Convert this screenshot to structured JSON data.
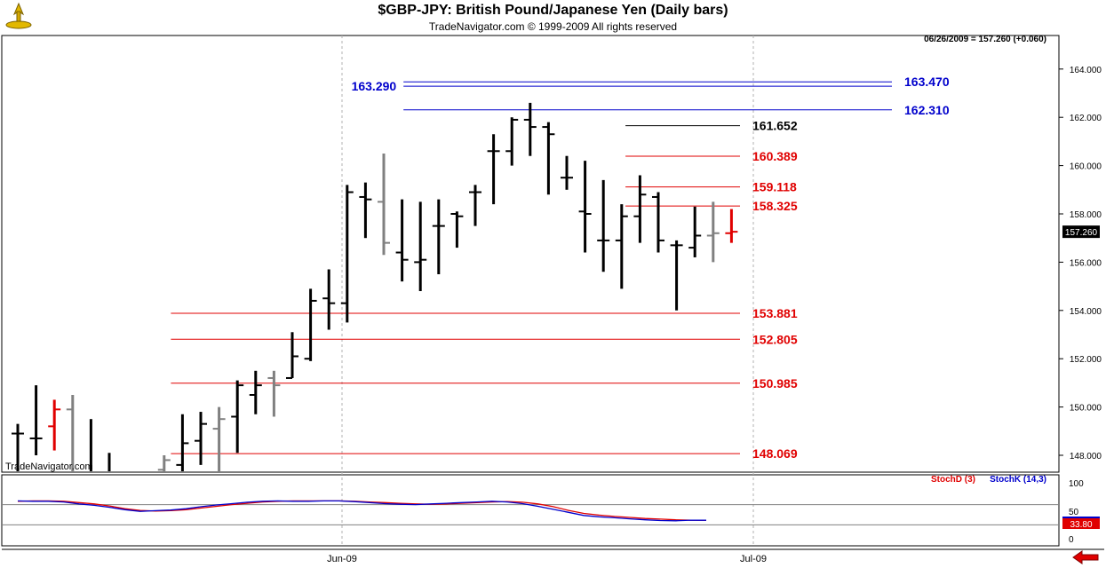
{
  "header": {
    "title": "$GBP-JPY:  British Pound/Japanese Yen  (Daily bars)",
    "subtitle": "TradeNavigator.com © 1999-2009 All rights reserved",
    "info": "06/26/2009 = 157.260 (+0.060)",
    "watermark": "TradeNavigator.com"
  },
  "chart_data": {
    "type": "bar",
    "subtype": "ohlc-daily",
    "price_axis": {
      "min": 146,
      "max": 164,
      "ticks": [
        "148.000",
        "150.000",
        "152.000",
        "154.000",
        "156.000",
        "158.000",
        "160.000",
        "162.000",
        "164.000"
      ]
    },
    "last_price": "157.260",
    "x_ticks": [
      "Jun-09",
      "Jul-09"
    ],
    "bars": [
      {
        "o": 148.9,
        "h": 149.3,
        "l": 147.0,
        "c": 148.9,
        "color": "black"
      },
      {
        "o": 148.7,
        "h": 150.9,
        "l": 148.0,
        "c": 148.7,
        "color": "black"
      },
      {
        "o": 149.2,
        "h": 150.3,
        "l": 148.2,
        "c": 149.9,
        "color": "red"
      },
      {
        "o": 149.9,
        "h": 150.5,
        "l": 145.0,
        "c": 147.1,
        "color": "gray"
      },
      {
        "o": 147.2,
        "h": 149.5,
        "l": 145.0,
        "c": 147.1,
        "color": "black"
      },
      {
        "o": 147.0,
        "h": 148.1,
        "l": 145.0,
        "c": 146.5,
        "color": "black"
      },
      {
        "o": 146.4,
        "h": 146.5,
        "l": 145.0,
        "c": 146.3,
        "color": "black"
      },
      {
        "o": 146.3,
        "h": 146.6,
        "l": 145.0,
        "c": 146.2,
        "color": "black"
      },
      {
        "o": 147.4,
        "h": 148.0,
        "l": 146.5,
        "c": 147.8,
        "color": "gray"
      },
      {
        "o": 147.6,
        "h": 149.7,
        "l": 147.1,
        "c": 148.5,
        "color": "black"
      },
      {
        "o": 148.6,
        "h": 149.8,
        "l": 147.6,
        "c": 149.3,
        "color": "black"
      },
      {
        "o": 149.1,
        "h": 150.0,
        "l": 146.9,
        "c": 149.5,
        "color": "gray"
      },
      {
        "o": 149.6,
        "h": 151.1,
        "l": 148.1,
        "c": 150.9,
        "color": "black"
      },
      {
        "o": 150.5,
        "h": 151.5,
        "l": 149.7,
        "c": 150.9,
        "color": "black"
      },
      {
        "o": 151.2,
        "h": 151.5,
        "l": 149.6,
        "c": 150.9,
        "color": "gray"
      },
      {
        "o": 151.2,
        "h": 153.1,
        "l": 151.2,
        "c": 152.1,
        "color": "black"
      },
      {
        "o": 152.0,
        "h": 154.9,
        "l": 151.9,
        "c": 154.4,
        "color": "black"
      },
      {
        "o": 154.5,
        "h": 155.7,
        "l": 153.2,
        "c": 154.3,
        "color": "black"
      },
      {
        "o": 154.3,
        "h": 159.2,
        "l": 153.5,
        "c": 158.9,
        "color": "black"
      },
      {
        "o": 158.7,
        "h": 159.3,
        "l": 157.0,
        "c": 158.6,
        "color": "black"
      },
      {
        "o": 158.5,
        "h": 160.5,
        "l": 156.3,
        "c": 156.8,
        "color": "gray"
      },
      {
        "o": 156.4,
        "h": 158.6,
        "l": 155.2,
        "c": 156.1,
        "color": "black"
      },
      {
        "o": 156.0,
        "h": 158.5,
        "l": 154.8,
        "c": 156.1,
        "color": "black"
      },
      {
        "o": 157.5,
        "h": 158.6,
        "l": 155.5,
        "c": 157.5,
        "color": "black"
      },
      {
        "o": 158.0,
        "h": 158.1,
        "l": 156.6,
        "c": 157.9,
        "color": "black"
      },
      {
        "o": 158.9,
        "h": 159.2,
        "l": 157.5,
        "c": 158.9,
        "color": "black"
      },
      {
        "o": 160.6,
        "h": 161.3,
        "l": 158.4,
        "c": 160.6,
        "color": "black"
      },
      {
        "o": 160.6,
        "h": 162.0,
        "l": 160.0,
        "c": 161.9,
        "color": "black"
      },
      {
        "o": 161.9,
        "h": 162.6,
        "l": 160.4,
        "c": 161.6,
        "color": "black"
      },
      {
        "o": 161.6,
        "h": 161.8,
        "l": 158.8,
        "c": 161.3,
        "color": "black"
      },
      {
        "o": 159.5,
        "h": 160.4,
        "l": 159.0,
        "c": 159.5,
        "color": "black"
      },
      {
        "o": 158.1,
        "h": 160.2,
        "l": 156.4,
        "c": 158.0,
        "color": "black"
      },
      {
        "o": 156.9,
        "h": 159.4,
        "l": 155.6,
        "c": 156.9,
        "color": "black"
      },
      {
        "o": 156.9,
        "h": 158.4,
        "l": 154.9,
        "c": 157.9,
        "color": "black"
      },
      {
        "o": 157.9,
        "h": 159.6,
        "l": 156.8,
        "c": 158.8,
        "color": "black"
      },
      {
        "o": 158.7,
        "h": 158.9,
        "l": 156.4,
        "c": 156.9,
        "color": "black"
      },
      {
        "o": 156.7,
        "h": 156.9,
        "l": 154.0,
        "c": 156.7,
        "color": "black"
      },
      {
        "o": 156.6,
        "h": 158.3,
        "l": 156.2,
        "c": 157.1,
        "color": "black"
      },
      {
        "o": 157.1,
        "h": 158.5,
        "l": 156.0,
        "c": 157.2,
        "color": "gray"
      },
      {
        "o": 157.2,
        "h": 158.2,
        "l": 156.8,
        "c": 157.26,
        "color": "red"
      }
    ],
    "levels": [
      {
        "value": 163.47,
        "label": "163.470",
        "color": "blue",
        "x_start": 0.38,
        "label_side": "right"
      },
      {
        "value": 163.29,
        "label": "163.290",
        "color": "blue",
        "x_start": 0.38,
        "label_side": "left"
      },
      {
        "value": 162.31,
        "label": "162.310",
        "color": "blue",
        "x_start": 0.38,
        "label_side": "right"
      },
      {
        "value": 161.652,
        "label": "161.652",
        "color": "black",
        "x_start": 0.59,
        "label_side": "right"
      },
      {
        "value": 160.389,
        "label": "160.389",
        "color": "red",
        "x_start": 0.59,
        "label_side": "right"
      },
      {
        "value": 159.118,
        "label": "159.118",
        "color": "red",
        "x_start": 0.59,
        "label_side": "right"
      },
      {
        "value": 158.325,
        "label": "158.325",
        "color": "red",
        "x_start": 0.59,
        "label_side": "right"
      },
      {
        "value": 153.881,
        "label": "153.881",
        "color": "red",
        "x_start": 0.16,
        "label_side": "right"
      },
      {
        "value": 152.805,
        "label": "152.805",
        "color": "red",
        "x_start": 0.16,
        "label_side": "right"
      },
      {
        "value": 150.985,
        "label": "150.985",
        "color": "red",
        "x_start": 0.16,
        "label_side": "right"
      },
      {
        "value": 148.069,
        "label": "148.069",
        "color": "red",
        "x_start": 0.16,
        "label_side": "right"
      }
    ],
    "stochastic": {
      "legend_d": "StochD (3)",
      "legend_k": "StochK (14,3)",
      "axis_ticks": [
        "100",
        "50",
        "0"
      ],
      "last_value": "33.80",
      "d_color": "#e00000",
      "k_color": "#0000cc",
      "d_values": [
        90,
        91,
        91,
        90,
        86,
        82,
        76,
        68,
        63,
        61,
        62,
        65,
        70,
        75,
        80,
        84,
        88,
        90,
        91,
        91,
        91,
        91,
        90,
        88,
        86,
        84,
        82,
        81,
        82,
        84,
        86,
        88,
        89,
        87,
        82,
        74,
        63,
        54,
        49,
        45,
        42,
        39,
        37,
        35,
        34,
        33.8
      ],
      "k_values": [
        91,
        90,
        90,
        88,
        82,
        78,
        72,
        65,
        60,
        62,
        64,
        68,
        74,
        79,
        83,
        87,
        90,
        91,
        90,
        90,
        91,
        91,
        89,
        86,
        83,
        81,
        80,
        82,
        84,
        86,
        88,
        90,
        88,
        83,
        75,
        66,
        57,
        48,
        44,
        41,
        38,
        35,
        33,
        32,
        34,
        33.8
      ]
    }
  },
  "colors": {
    "up_red": "#e00000",
    "level_blue": "#0000cc",
    "bar_black": "#000000",
    "bar_gray": "#808080"
  }
}
